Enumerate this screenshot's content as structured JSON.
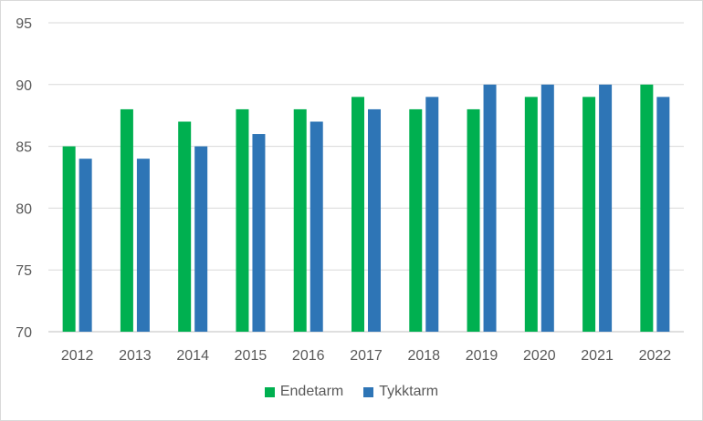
{
  "chart_data": {
    "type": "bar",
    "categories": [
      "2012",
      "2013",
      "2014",
      "2015",
      "2016",
      "2017",
      "2018",
      "2019",
      "2020",
      "2021",
      "2022"
    ],
    "series": [
      {
        "name": "Endetarm",
        "color": "#00b050",
        "values": [
          85,
          88,
          87,
          88,
          88,
          89,
          88,
          88,
          89,
          89,
          90
        ]
      },
      {
        "name": "Tykktarm",
        "color": "#2e75b6",
        "values": [
          84,
          84,
          85,
          86,
          87,
          88,
          89,
          90,
          90,
          90,
          89
        ]
      }
    ],
    "ylim": [
      70,
      95
    ],
    "yticks": [
      70,
      75,
      80,
      85,
      90,
      95
    ],
    "grid": true,
    "legend_position": "bottom"
  }
}
